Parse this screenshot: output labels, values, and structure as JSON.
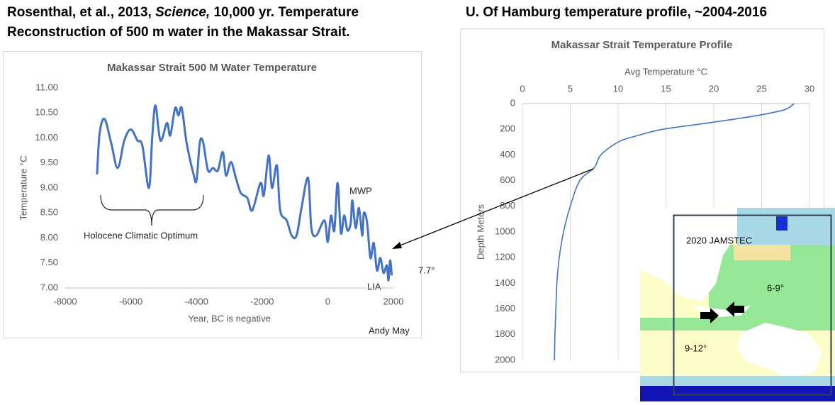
{
  "header": {
    "left_line1": [
      "Rosenthal, et al., 2013, ",
      "Science,",
      " 10,000 yr. Temperature"
    ],
    "left_line2": "Reconstruction of 500 m water in the Makassar Strait.",
    "right": "U. Of Hamburg temperature profile, ~2004-2016"
  },
  "chart_data": [
    {
      "type": "line",
      "title": "Makassar Strait 500 M Water Temperature",
      "x_label": "Year, BC is negative",
      "y_label": "Temperature °C",
      "color": "#4472c4",
      "x": [
        -7030,
        -6950,
        -6800,
        -6600,
        -6400,
        -6200,
        -6000,
        -5800,
        -5650,
        -5450,
        -5350,
        -5250,
        -5100,
        -4900,
        -4800,
        -4650,
        -4550,
        -4450,
        -4300,
        -4100,
        -4000,
        -3900,
        -3800,
        -3650,
        -3500,
        -3350,
        -3200,
        -3100,
        -2950,
        -2800,
        -2650,
        -2450,
        -2300,
        -2050,
        -1950,
        -1800,
        -1700,
        -1550,
        -1450,
        -1250,
        -1100,
        -950,
        -800,
        -600,
        -500,
        -350,
        -100,
        0,
        100,
        200,
        300,
        400,
        500,
        600,
        700,
        750,
        850,
        950,
        1050,
        1100,
        1200,
        1300,
        1400,
        1500,
        1600,
        1700,
        1800,
        1850,
        1900,
        1950
      ],
      "values": [
        9.27,
        10.1,
        10.38,
        9.9,
        9.4,
        9.95,
        10.17,
        9.95,
        9.85,
        9.0,
        10.0,
        10.65,
        9.95,
        10.3,
        10.05,
        10.6,
        10.45,
        10.6,
        9.9,
        9.3,
        9.15,
        9.9,
        9.92,
        9.35,
        9.4,
        9.35,
        9.72,
        9.25,
        9.52,
        9.2,
        8.9,
        8.8,
        8.55,
        9.1,
        8.85,
        9.65,
        9.0,
        9.45,
        8.55,
        8.35,
        8.05,
        8.05,
        8.6,
        9.2,
        8.2,
        8.05,
        8.35,
        7.92,
        8.45,
        8.15,
        9.1,
        8.1,
        8.45,
        8.15,
        8.3,
        8.75,
        8.2,
        8.6,
        8.05,
        8.5,
        8.3,
        7.6,
        7.9,
        7.35,
        7.6,
        7.3,
        7.45,
        7.15,
        7.55,
        7.25
      ],
      "xlim": [
        -8000,
        2000
      ],
      "xticks": [
        -8000,
        -6000,
        -4000,
        -2000,
        0,
        2000
      ],
      "ylim": [
        7,
        11
      ],
      "yticks": [
        {
          "value": 7,
          "label": "7.00"
        },
        {
          "value": 7.5,
          "label": "7.50"
        },
        {
          "value": 8,
          "label": "8.00"
        },
        {
          "value": 8.5,
          "label": "8.50"
        },
        {
          "value": 9,
          "label": "9.00"
        },
        {
          "value": 9.5,
          "label": "9.50"
        },
        {
          "value": 10,
          "label": "10.00"
        },
        {
          "value": 10.5,
          "label": "10.50"
        },
        {
          "value": 11,
          "label": "11.00"
        }
      ],
      "grid": false,
      "annotations": [
        "MWP",
        "LIA",
        "Holocene Climatic Optimum",
        "7.7°",
        "Andy May"
      ]
    },
    {
      "type": "line",
      "title": "Makassar Strait Temperature Profile",
      "x_label": "Avg Temperature °C",
      "y_label": "Depth Meters",
      "color": "#4472c4",
      "x": [
        28.4,
        27.3,
        24,
        19.5,
        14.7,
        12,
        10,
        8.2,
        7.5,
        6.0,
        5.0,
        4.3,
        3.85,
        3.6,
        3.5,
        3.4,
        3.35
      ],
      "values": [
        0,
        50,
        100,
        150,
        200,
        250,
        300,
        400,
        500,
        600,
        800,
        1000,
        1200,
        1400,
        1600,
        1800,
        2000
      ],
      "xlim": [
        0,
        30
      ],
      "xticks": [
        0,
        5,
        10,
        15,
        20,
        25,
        30
      ],
      "ylim": [
        0,
        2000
      ],
      "yticks": [
        0,
        200,
        400,
        600,
        800,
        1000,
        1200,
        1400,
        1600,
        1800,
        2000
      ],
      "y_inverted": true,
      "x_axis_position": "top",
      "grid": "x"
    }
  ],
  "map": {
    "source": "2020 JAMSTEC",
    "labels": [
      "6-9°",
      "9-12°"
    ]
  }
}
